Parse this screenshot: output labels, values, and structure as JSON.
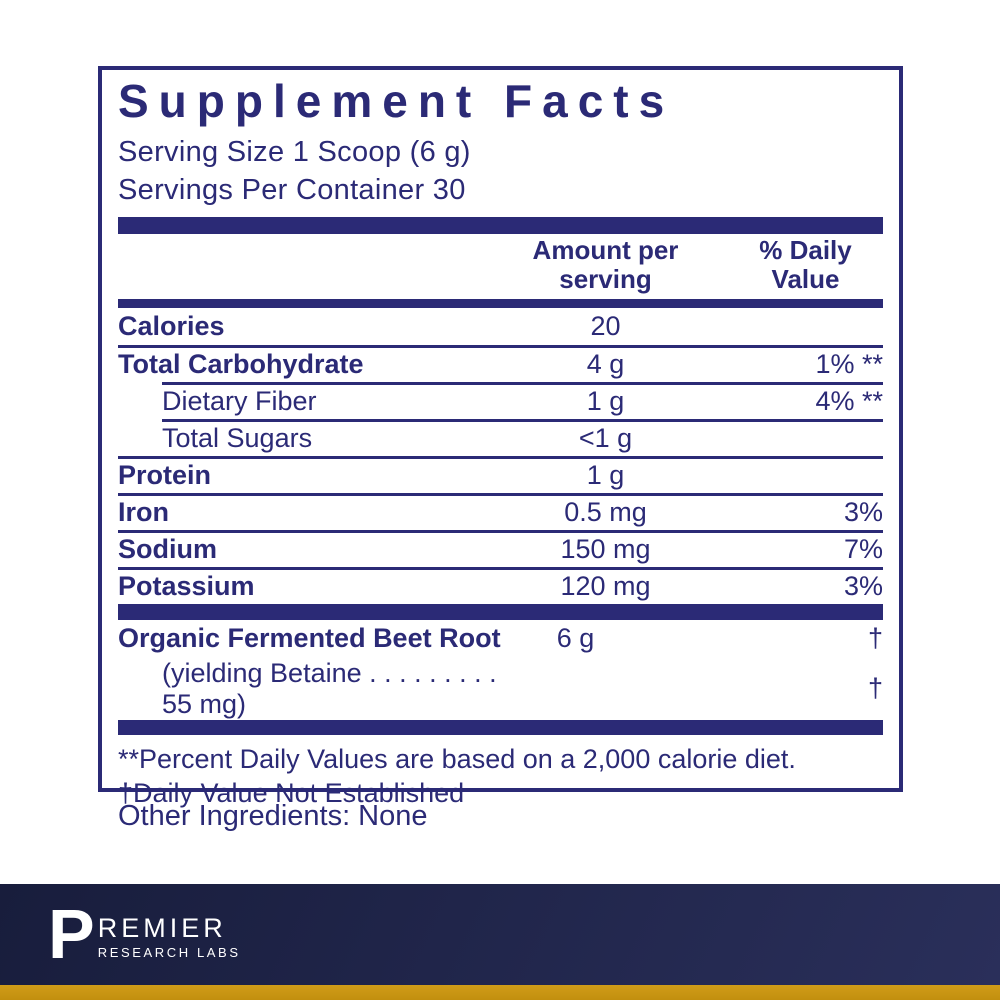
{
  "colors": {
    "navy": "#2b2a76",
    "footer_navy_dark": "#181d3c",
    "footer_navy_light": "#2a2f5a",
    "gold": "#c79417"
  },
  "panel": {
    "title": "Supplement Facts",
    "serving_size": "Serving Size 1 Scoop (6 g)",
    "servings_per_container": "Servings Per Container 30",
    "header": {
      "amount": "Amount per serving",
      "daily_value": "% Daily Value"
    },
    "rows": [
      {
        "label": "Calories",
        "amount": "20",
        "dv": ""
      },
      {
        "label": "Total Carbohydrate",
        "amount": "4 g",
        "dv": "1% **"
      },
      {
        "label": "Dietary Fiber",
        "amount": "1 g",
        "dv": "4% **"
      },
      {
        "label": "Total Sugars",
        "amount": "<1 g",
        "dv": ""
      },
      {
        "label": "Protein",
        "amount": "1 g",
        "dv": ""
      },
      {
        "label": "Iron",
        "amount": "0.5 mg",
        "dv": "3%"
      },
      {
        "label": "Sodium",
        "amount": "150 mg",
        "dv": "7%"
      },
      {
        "label": "Potassium",
        "amount": "120 mg",
        "dv": "3%"
      }
    ],
    "supplement_rows": [
      {
        "label": "Organic Fermented Beet Root",
        "amount": "6 g",
        "dv": "†"
      },
      {
        "label": "(yielding Betaine . . . . . . . . . 55 mg)",
        "amount": "",
        "dv": "†"
      }
    ],
    "footnotes": [
      "**Percent Daily Values are based on a 2,000 calorie diet.",
      "†Daily Value Not Established"
    ]
  },
  "other_ingredients": "Other Ingredients: None",
  "footer": {
    "logo_initial": "P",
    "logo_name": "REMIER",
    "logo_sub": "RESEARCH LABS"
  }
}
